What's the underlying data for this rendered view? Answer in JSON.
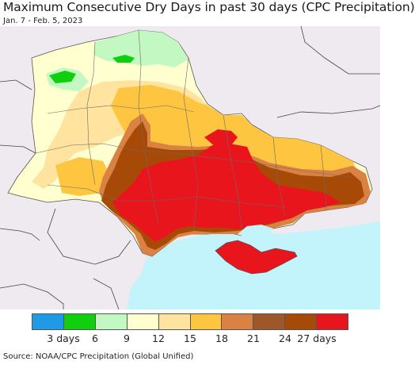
{
  "title": "Maximum Consecutive Dry Days in past 30 days (CPC Precipitation)",
  "subtitle": "Jan. 7 - Feb. 5, 2023",
  "source": "Source: NOAA/CPC Precipitation (Global Unified)",
  "colors": {
    "ocean": "#c3f4fb",
    "outside": "#eeeaf0",
    "border": "#444444",
    "scale": [
      "#1e9ae6",
      "#0fcf0f",
      "#c3f8c2",
      "#ffffd0",
      "#ffe39e",
      "#fec540",
      "#d98244",
      "#9e5728",
      "#a84a07",
      "#e8151c"
    ]
  },
  "legend": {
    "ticks": [
      "3 days",
      "6",
      "9",
      "12",
      "15",
      "18",
      "21",
      "24",
      "27 days"
    ]
  }
}
